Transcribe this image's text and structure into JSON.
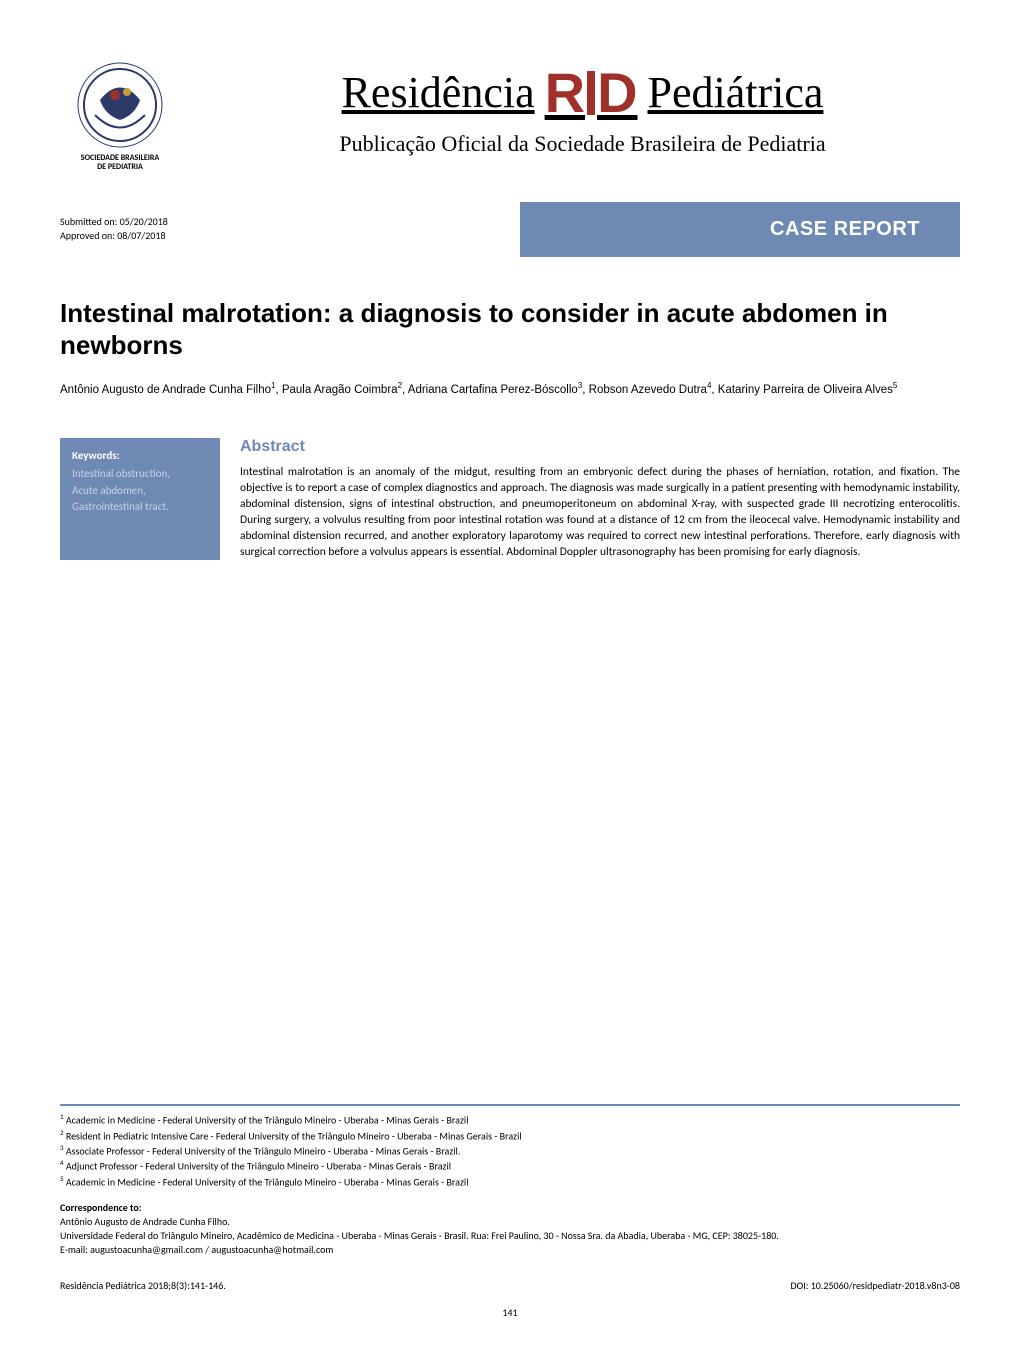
{
  "journal": {
    "logo_org_line1": "SOCIEDADE BRASILEIRA",
    "logo_org_line2": "DE PEDIATRIA",
    "title_left": "Residência",
    "title_right": "Pediátrica",
    "subtitle": "Publicação Oficial da Sociedade Brasileira de Pediatria",
    "brand_color": "#a0302a",
    "banner_color": "#6f89b5"
  },
  "dates": {
    "submitted_label": "Submitted on: ",
    "submitted_value": "05/20/2018",
    "approved_label": "Approved on: ",
    "approved_value": "08/07/2018"
  },
  "banner": {
    "text": "CASE REPORT"
  },
  "article": {
    "title": "Intestinal malrotation: a diagnosis to consider in acute abdomen in newborns",
    "authors_html_parts": [
      {
        "text": "Antônio Augusto de Andrade Cunha Filho",
        "sup": "1"
      },
      {
        "text": ", Paula Aragão Coimbra",
        "sup": "2"
      },
      {
        "text": ", Adriana Cartafina Perez-Bóscollo",
        "sup": "3"
      },
      {
        "text": ", Robson Azevedo Dutra",
        "sup": "4"
      },
      {
        "text": ", Katariny Parreira de Oliveira Alves",
        "sup": "5"
      }
    ]
  },
  "keywords": {
    "heading": "Keywords:",
    "items": "Intestinal obstruction,\nAcute abdomen,\nGastrointestinal tract."
  },
  "abstract": {
    "heading": "Abstract",
    "text": "Intestinal malrotation is an anomaly of the midgut, resulting from an embryonic defect during the phases of herniation, rotation, and fixation. The objective is to report a case of complex diagnostics and approach. The diagnosis was made surgically in a patient presenting with hemodynamic instability, abdominal distension, signs of intestinal obstruction, and pneumoperitoneum on abdominal X-ray, with suspected grade III necrotizing enterocolitis. During surgery, a volvulus resulting from poor intestinal rotation was found at a distance of 12 cm from the ileocecal valve. Hemodynamic instability and abdominal distension recurred, and another exploratory laparotomy was required to correct new intestinal perforations. Therefore, early diagnosis with surgical correction before a volvulus appears is essential. Abdominal Doppler ultrasonography has been promising for early diagnosis."
  },
  "affiliations": [
    {
      "num": "1",
      "text": " Academic in Medicine - Federal University of the Triângulo Mineiro - Uberaba - Minas Gerais - Brazil"
    },
    {
      "num": "2",
      "text": " Resident in Pediatric Intensive Care - Federal University of the Triângulo Mineiro - Uberaba - Minas Gerais - Brazil"
    },
    {
      "num": "3",
      "text": " Associate Professor - Federal University of the Triângulo Mineiro - Uberaba - Minas Gerais - Brazil."
    },
    {
      "num": "4",
      "text": " Adjunct Professor - Federal University of the Triângulo Mineiro - Uberaba - Minas Gerais - Brazil"
    },
    {
      "num": "5",
      "text": " Academic in Medicine - Federal University of the Triângulo Mineiro - Uberaba - Minas Gerais - Brazil"
    }
  ],
  "correspondence": {
    "heading": "Correspondence to:",
    "name": "Antônio Augusto de Andrade Cunha Filho.",
    "address": "Universidade Federal do Triângulo Mineiro, Acadêmico de Medicina - Uberaba - Minas Gerais - Brasil. Rua: Frei Paulino, 30 - Nossa Sra. da Abadia, Uberaba - MG, CEP: 38025-180.",
    "email": "E-mail: augustoacunha@gmail.com / augustoacunha@hotmail.com"
  },
  "citation": {
    "left": "Residência Pediátrica 2018;8(3):141-146.",
    "right": "DOI: 10.25060/residpediatr-2018.v8n3-08"
  },
  "page_number": "141"
}
